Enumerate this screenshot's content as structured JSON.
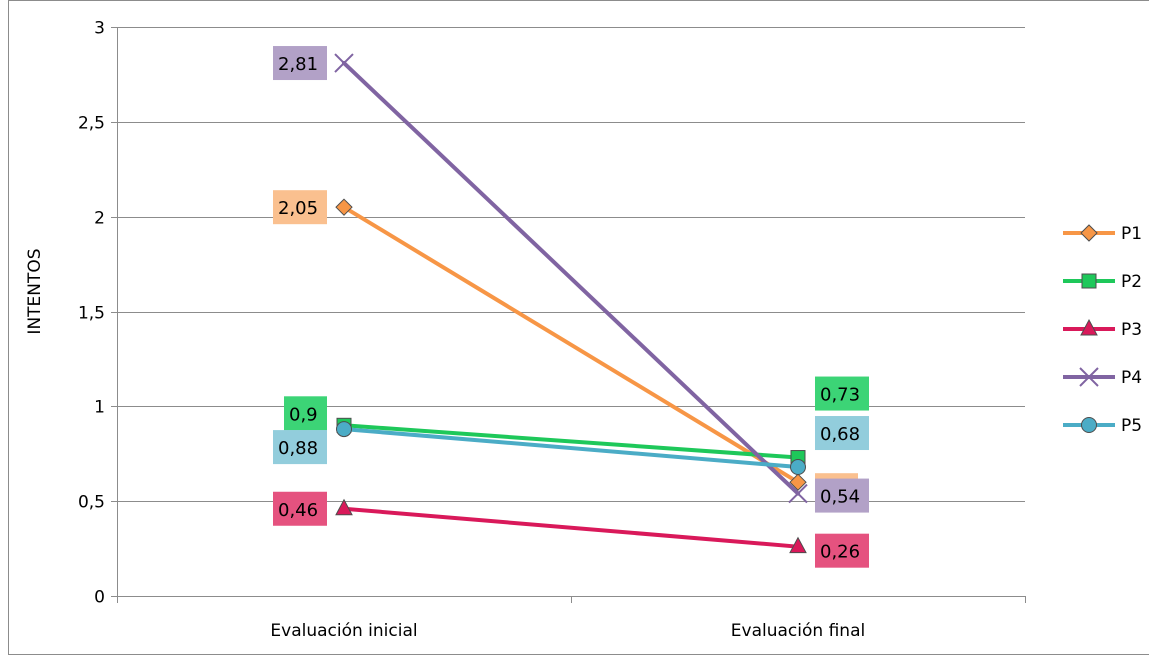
{
  "chart_data": {
    "type": "line",
    "title": "",
    "xlabel": "",
    "ylabel": "INTENTOS",
    "categories": [
      "Evaluación inicial",
      "Evaluación final"
    ],
    "ylim": [
      0,
      3
    ],
    "yticks": [
      0,
      0.5,
      1,
      1.5,
      2,
      2.5,
      3
    ],
    "ytick_labels": [
      "0",
      "0,5",
      "1",
      "1,5",
      "2",
      "2,5",
      "3"
    ],
    "grid": true,
    "legend_position": "right",
    "series": [
      {
        "name": "P1",
        "values": [
          2.05,
          0.6
        ],
        "labels": [
          "2,05",
          "0,6"
        ],
        "color": "#F79646",
        "label_bg": "#FAC08F",
        "marker": "diamond"
      },
      {
        "name": "P2",
        "values": [
          0.9,
          0.73
        ],
        "labels": [
          "0,9",
          "0,73"
        ],
        "color": "#1EC85A",
        "label_bg": "#3CD476",
        "marker": "square"
      },
      {
        "name": "P3",
        "values": [
          0.46,
          0.26
        ],
        "labels": [
          "0,46",
          "0,26"
        ],
        "color": "#D9195A",
        "label_bg": "#E5527F",
        "marker": "triangle"
      },
      {
        "name": "P4",
        "values": [
          2.81,
          0.54
        ],
        "labels": [
          "2,81",
          "0,54"
        ],
        "color": "#8064A2",
        "label_bg": "#B2A1C7",
        "marker": "x"
      },
      {
        "name": "P5",
        "values": [
          0.88,
          0.68
        ],
        "labels": [
          "0,88",
          "0,68"
        ],
        "color": "#4BACC6",
        "label_bg": "#92CDDC",
        "marker": "circle"
      }
    ]
  }
}
